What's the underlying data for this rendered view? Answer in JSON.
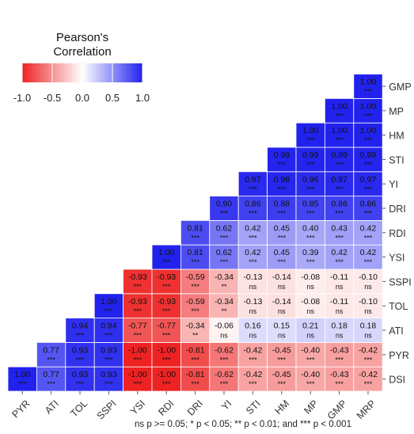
{
  "chart_data": {
    "type": "heatmap",
    "title": "",
    "legend": {
      "title_line1": "Pearson's",
      "title_line2": "Correlation",
      "ticks": [
        "-1.0",
        "-0.5",
        "0.0",
        "0.5",
        "1.0"
      ],
      "range": [
        -1.0,
        1.0
      ],
      "colors": {
        "low": "#ee2222",
        "mid": "#ffffff",
        "high": "#2222ee"
      },
      "position": "top-left"
    },
    "x_labels": [
      "PYR",
      "ATI",
      "TOL",
      "SSPI",
      "YSI",
      "RDI",
      "DRI",
      "YI",
      "STI",
      "HM",
      "MP",
      "GMP",
      "MRP"
    ],
    "y_labels": [
      "DSI",
      "PYR",
      "ATI",
      "TOL",
      "SSPI",
      "YSI",
      "RDI",
      "DRI",
      "YI",
      "STI",
      "HM",
      "MP",
      "GMP"
    ],
    "rows": [
      {
        "y": "DSI",
        "cells": [
          [
            "1.00",
            "***"
          ],
          [
            "0.77",
            "***"
          ],
          [
            "0.93",
            "***"
          ],
          [
            "0.93",
            "***"
          ],
          [
            "-1.00",
            "***"
          ],
          [
            "-1.00",
            "***"
          ],
          [
            "-0.81",
            "***"
          ],
          [
            "-0.62",
            "***"
          ],
          [
            "-0.42",
            "***"
          ],
          [
            "-0.45",
            "***"
          ],
          [
            "-0.40",
            "***"
          ],
          [
            "-0.43",
            "***"
          ],
          [
            "-0.42",
            "***"
          ]
        ]
      },
      {
        "y": "PYR",
        "cells": [
          [
            "0.77",
            "***"
          ],
          [
            "0.93",
            "***"
          ],
          [
            "0.93",
            "***"
          ],
          [
            "-1.00",
            "***"
          ],
          [
            "-1.00",
            "***"
          ],
          [
            "-0.81",
            "***"
          ],
          [
            "-0.62",
            "***"
          ],
          [
            "-0.42",
            "***"
          ],
          [
            "-0.45",
            "***"
          ],
          [
            "-0.40",
            "***"
          ],
          [
            "-0.43",
            "***"
          ],
          [
            "-0.42",
            "***"
          ]
        ]
      },
      {
        "y": "ATI",
        "cells": [
          [
            "0.94",
            "***"
          ],
          [
            "0.94",
            "***"
          ],
          [
            "-0.77",
            "***"
          ],
          [
            "-0.77",
            "***"
          ],
          [
            "-0.34",
            "**"
          ],
          [
            "-0.06",
            "ns"
          ],
          [
            "0.16",
            "ns"
          ],
          [
            "0.15",
            "ns"
          ],
          [
            "0.21",
            "ns"
          ],
          [
            "0.18",
            "ns"
          ],
          [
            "0.18",
            "ns"
          ]
        ]
      },
      {
        "y": "TOL",
        "cells": [
          [
            "1.00",
            "***"
          ],
          [
            "-0.93",
            "***"
          ],
          [
            "-0.93",
            "***"
          ],
          [
            "-0.59",
            "***"
          ],
          [
            "-0.34",
            "**"
          ],
          [
            "-0.13",
            "ns"
          ],
          [
            "-0.14",
            "ns"
          ],
          [
            "-0.08",
            "ns"
          ],
          [
            "-0.11",
            "ns"
          ],
          [
            "-0.10",
            "ns"
          ]
        ]
      },
      {
        "y": "SSPI",
        "cells": [
          [
            "-0.93",
            "***"
          ],
          [
            "-0.93",
            "***"
          ],
          [
            "-0.59",
            "***"
          ],
          [
            "-0.34",
            "**"
          ],
          [
            "-0.13",
            "ns"
          ],
          [
            "-0.14",
            "ns"
          ],
          [
            "-0.08",
            "ns"
          ],
          [
            "-0.11",
            "ns"
          ],
          [
            "-0.10",
            "ns"
          ]
        ]
      },
      {
        "y": "YSI",
        "cells": [
          [
            "1.00",
            "***"
          ],
          [
            "0.81",
            "***"
          ],
          [
            "0.62",
            "***"
          ],
          [
            "0.42",
            "***"
          ],
          [
            "0.45",
            "***"
          ],
          [
            "0.39",
            "***"
          ],
          [
            "0.42",
            "***"
          ],
          [
            "0.42",
            "***"
          ]
        ]
      },
      {
        "y": "RDI",
        "cells": [
          [
            "0.81",
            "***"
          ],
          [
            "0.62",
            "***"
          ],
          [
            "0.42",
            "***"
          ],
          [
            "0.45",
            "***"
          ],
          [
            "0.40",
            "***"
          ],
          [
            "0.43",
            "***"
          ],
          [
            "0.42",
            "***"
          ]
        ]
      },
      {
        "y": "DRI",
        "cells": [
          [
            "0.90",
            "***"
          ],
          [
            "0.86",
            "***"
          ],
          [
            "0.88",
            "***"
          ],
          [
            "0.85",
            "***"
          ],
          [
            "0.86",
            "***"
          ],
          [
            "0.86",
            "***"
          ]
        ]
      },
      {
        "y": "YI",
        "cells": [
          [
            "0.97",
            "***"
          ],
          [
            "0.98",
            "***"
          ],
          [
            "0.96",
            "***"
          ],
          [
            "0.97",
            "***"
          ],
          [
            "0.97",
            "***"
          ]
        ]
      },
      {
        "y": "STI",
        "cells": [
          [
            "0.99",
            "***"
          ],
          [
            "0.99",
            "***"
          ],
          [
            "0.99",
            "***"
          ],
          [
            "0.99",
            "***"
          ]
        ]
      },
      {
        "y": "HM",
        "cells": [
          [
            "1.00",
            "***"
          ],
          [
            "1.00",
            "***"
          ],
          [
            "1.00",
            "***"
          ]
        ]
      },
      {
        "y": "MP",
        "cells": [
          [
            "1.00",
            "***"
          ],
          [
            "1.00",
            "***"
          ]
        ]
      },
      {
        "y": "GMP",
        "cells": [
          [
            "1.00",
            "***"
          ]
        ]
      }
    ],
    "footnote": "ns p >= 0.05; * p < 0.05; ** p < 0.01; and *** p < 0.001"
  }
}
